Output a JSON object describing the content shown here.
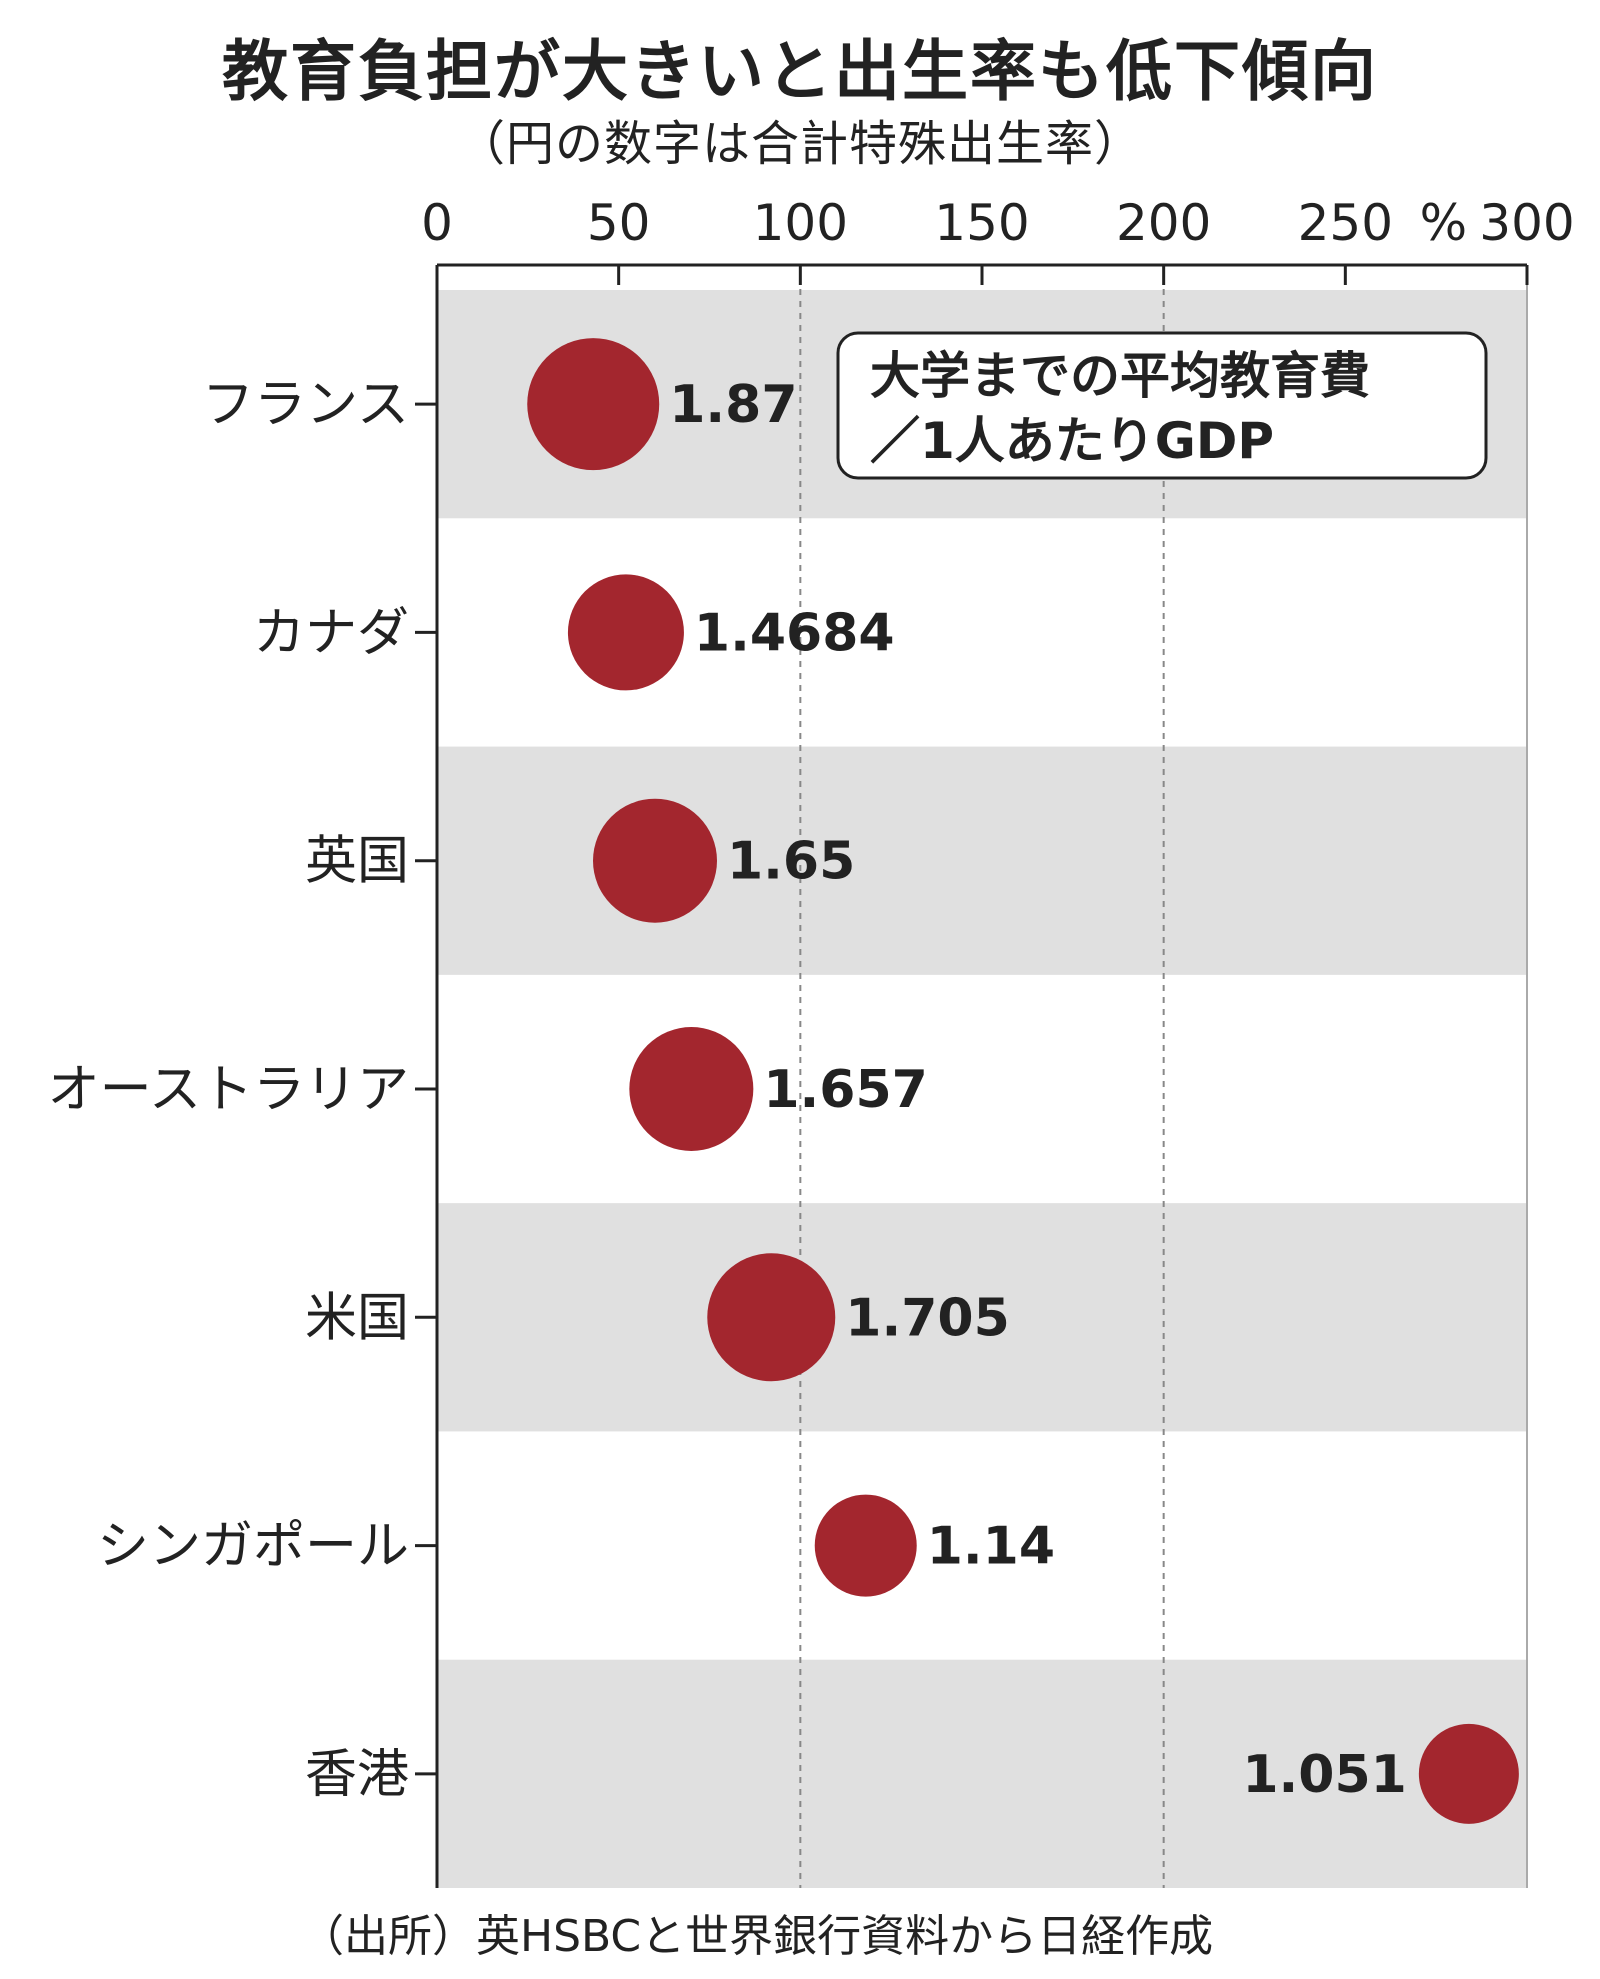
{
  "title": "教育負担が大きいと出生率も低下傾向",
  "subtitle": "（円の数字は合計特殊出生率）",
  "source": "（出所）英HSBCと世界銀行資料から日経作成",
  "legend": {
    "line1": "大学までの平均教育費",
    "line2": "／1人あたりGDP"
  },
  "colors": {
    "bubble": "#a3262e",
    "band": "#e0e0e0"
  },
  "chart_data": {
    "type": "scatter",
    "unit": "%",
    "xlim": [
      0,
      300
    ],
    "xticks": [
      0,
      50,
      100,
      150,
      200,
      250,
      300
    ],
    "categories": [
      "フランス",
      "カナダ",
      "英国",
      "オーストラリア",
      "米国",
      "シンガポール",
      "香港"
    ],
    "values": [
      43,
      52,
      60,
      70,
      92,
      118,
      284
    ],
    "fertility": [
      "1.87",
      "1.4684",
      "1.65",
      "1.657",
      "1.705",
      "1.14",
      "1.051"
    ],
    "grid": true
  }
}
